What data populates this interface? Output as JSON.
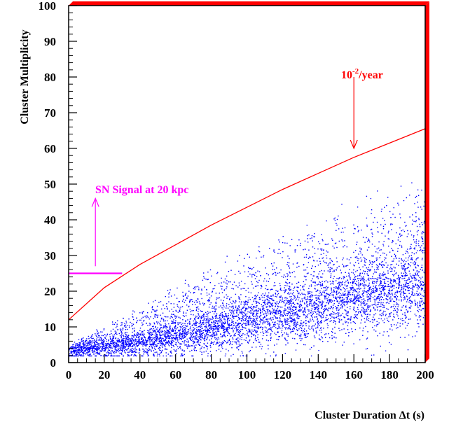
{
  "chart_data": {
    "type": "scatter",
    "title": "",
    "xlabel": "Cluster Duration Δt (s)",
    "ylabel": "Cluster Multiplicity",
    "xlim": [
      0,
      200
    ],
    "ylim": [
      0,
      100
    ],
    "xticks": [
      "0",
      "20",
      "40",
      "60",
      "80",
      "100",
      "120",
      "140",
      "160",
      "180",
      "200"
    ],
    "yticks": [
      "0",
      "10",
      "20",
      "30",
      "40",
      "50",
      "60",
      "70",
      "80",
      "90",
      "100"
    ],
    "grid": false,
    "colors": {
      "scatter": "#0000ff",
      "threshold_curve": "#ff0000",
      "sn_signal": "#ff00ff",
      "frame_accent": "#ff0000"
    },
    "threshold_curve": {
      "label_base": "10",
      "label_exp": "-2",
      "label_unit": "/year",
      "points": [
        [
          0,
          12
        ],
        [
          20,
          21
        ],
        [
          40,
          27.5
        ],
        [
          60,
          33
        ],
        [
          80,
          38.5
        ],
        [
          100,
          43.5
        ],
        [
          120,
          48.5
        ],
        [
          140,
          53
        ],
        [
          160,
          57.5
        ],
        [
          180,
          61.5
        ],
        [
          200,
          65.5
        ]
      ],
      "arrow": {
        "x": 160,
        "y_from": 80,
        "y_to": 60
      }
    },
    "sn_signal": {
      "label": "SN Signal at 20 kpc",
      "level": 25,
      "x_range": [
        0,
        30
      ],
      "arrow": {
        "x": 15,
        "y_from": 27,
        "y_to": 46
      }
    },
    "scatter_model": {
      "description_points": 6000,
      "core_mean": [
        [
          0,
          3
        ],
        [
          50,
          6
        ],
        [
          100,
          11
        ],
        [
          150,
          16
        ],
        [
          200,
          21
        ]
      ],
      "upper_envelope": [
        [
          0,
          5
        ],
        [
          50,
          20
        ],
        [
          100,
          33
        ],
        [
          150,
          44
        ],
        [
          200,
          56
        ]
      ]
    }
  }
}
